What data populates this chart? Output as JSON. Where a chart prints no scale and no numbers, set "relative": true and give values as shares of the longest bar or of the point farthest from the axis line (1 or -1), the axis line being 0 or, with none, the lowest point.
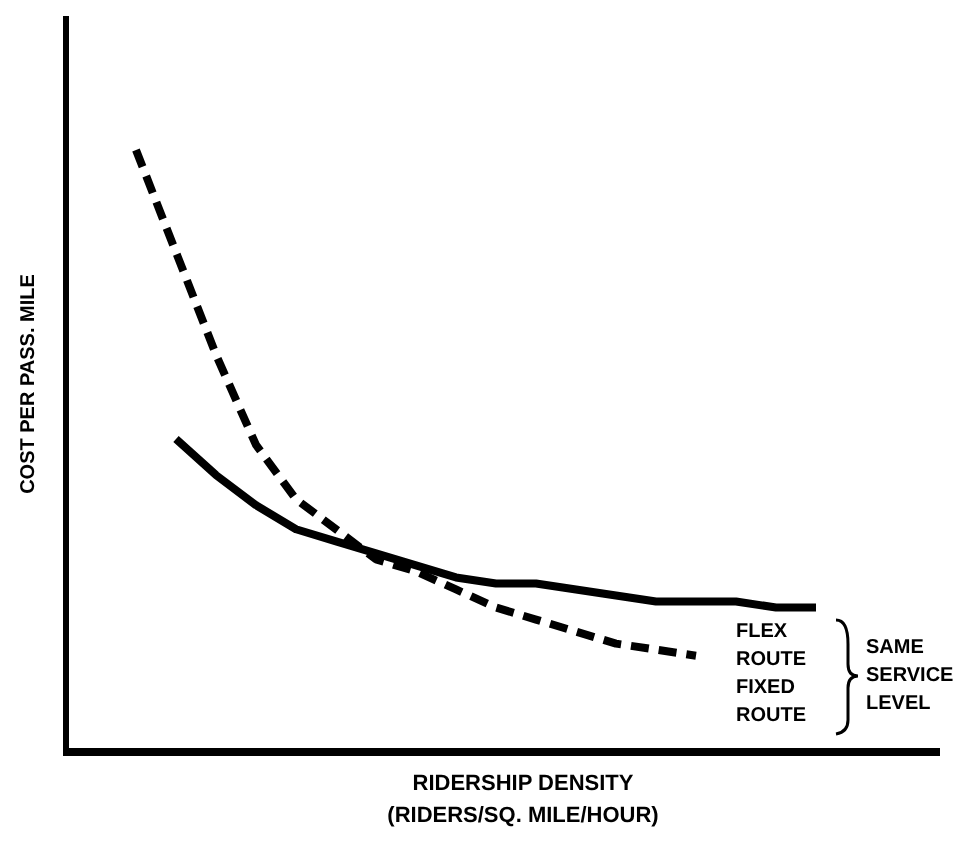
{
  "chart_data": {
    "type": "line",
    "relative": true,
    "ylabel": "COST PER PASS. MILE",
    "xlabel": "RIDERSHIP DENSITY\n(RIDERS/SQ. MILE/HOUR)",
    "legend": false,
    "grid": false,
    "categories": [
      null,
      null,
      null,
      null,
      null,
      null,
      null,
      null,
      null,
      null,
      null,
      null,
      null,
      null,
      null,
      null,
      null,
      null
    ],
    "series": [
      {
        "name": "FLEX ROUTE",
        "color": "#000000",
        "line_style": "solid",
        "values": [
          null,
          0.52,
          0.46,
          0.41,
          0.37,
          0.35,
          0.33,
          0.31,
          0.29,
          0.28,
          0.28,
          0.27,
          0.26,
          0.25,
          0.25,
          0.25,
          0.24,
          0.24
        ]
      },
      {
        "name": "FIXED ROUTE",
        "color": "#000000",
        "line_style": "dashed",
        "values": [
          1,
          0.83,
          0.66,
          0.51,
          0.42,
          0.37,
          0.32,
          0.3,
          0.27,
          0.24,
          0.22,
          0.2,
          0.18,
          0.17,
          0.16,
          null,
          null,
          null
        ]
      }
    ],
    "annotations": [
      "SAME SERVICE LEVEL"
    ]
  }
}
